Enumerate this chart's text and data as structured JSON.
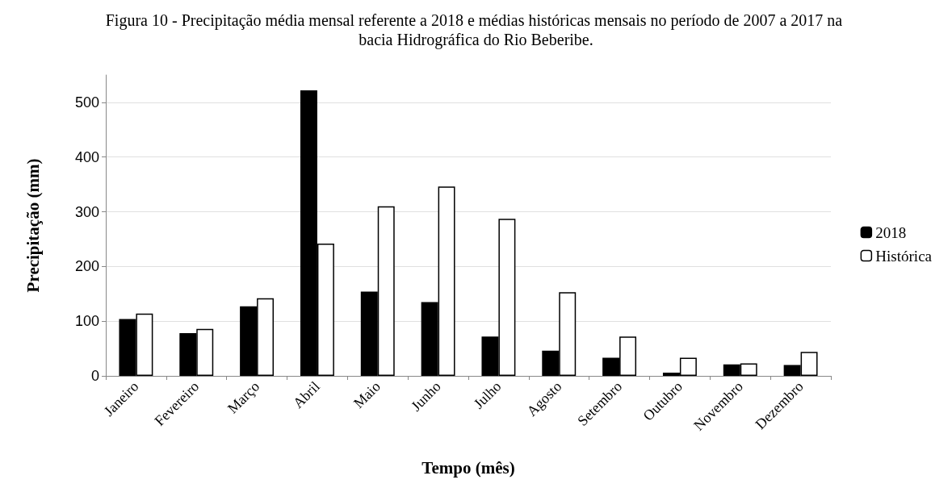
{
  "chart_data": {
    "type": "bar",
    "title": "Figura 10 - Precipitação média mensal referente a 2018 e médias históricas mensais no período de 2007 a 2017 na bacia Hidrográfica do Rio Beberibe.",
    "xlabel": "Tempo (mês)",
    "ylabel": "Precipitação (mm)",
    "categories": [
      "Janeiro",
      "Fevereiro",
      "Março",
      "Abril",
      "Maio",
      "Junho",
      "Julho",
      "Agosto",
      "Setembro",
      "Outubro",
      "Novembro",
      "Dezembro"
    ],
    "series": [
      {
        "name": "2018",
        "color": "#000000",
        "values": [
          104,
          78,
          127,
          522,
          154,
          135,
          72,
          46,
          33,
          6,
          21,
          20
        ]
      },
      {
        "name": "Histórica",
        "color": "#ffffff",
        "values": [
          114,
          86,
          142,
          242,
          310,
          346,
          287,
          153,
          72,
          33,
          23,
          44
        ]
      }
    ],
    "ylim": [
      0,
      550
    ],
    "yticks": [
      0,
      100,
      200,
      300,
      400,
      500
    ],
    "grid": "y",
    "legend": "right"
  }
}
